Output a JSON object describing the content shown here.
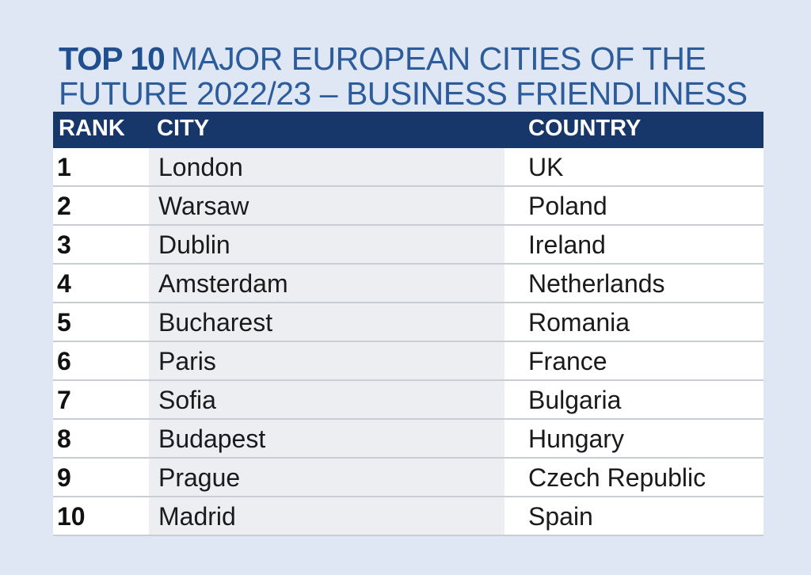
{
  "title": {
    "lead": "TOP 10",
    "text": "MAJOR EUROPEAN CITIES OF THE FUTURE 2022/23 – BUSINESS FRIENDLINESS"
  },
  "table": {
    "headers": {
      "rank": "RANK",
      "city": "CITY",
      "country": "COUNTRY"
    },
    "rows": [
      {
        "rank": "1",
        "city": "London",
        "country": "UK"
      },
      {
        "rank": "2",
        "city": "Warsaw",
        "country": "Poland"
      },
      {
        "rank": "3",
        "city": "Dublin",
        "country": "Ireland"
      },
      {
        "rank": "4",
        "city": "Amsterdam",
        "country": "Netherlands"
      },
      {
        "rank": "5",
        "city": "Bucharest",
        "country": "Romania"
      },
      {
        "rank": "6",
        "city": "Paris",
        "country": "France"
      },
      {
        "rank": "7",
        "city": "Sofia",
        "country": "Bulgaria"
      },
      {
        "rank": "8",
        "city": "Budapest",
        "country": "Hungary"
      },
      {
        "rank": "9",
        "city": "Prague",
        "country": "Czech Republic"
      },
      {
        "rank": "10",
        "city": "Madrid",
        "country": "Spain"
      }
    ]
  },
  "colors": {
    "background": "#dfe7f4",
    "title": "#2c5c9a",
    "header": "#17366a"
  }
}
